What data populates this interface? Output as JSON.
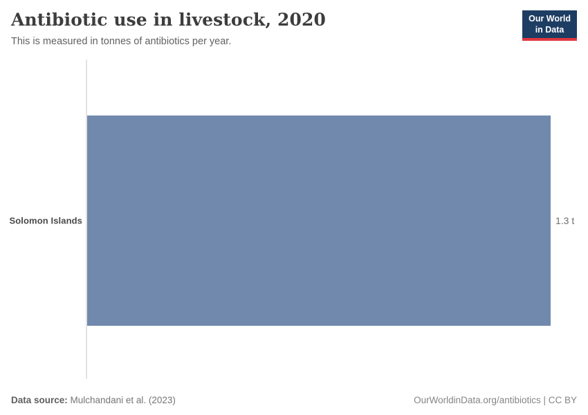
{
  "header": {
    "title": "Antibiotic use in livestock, 2020",
    "subtitle": "This is measured in tonnes of antibiotics per year.",
    "logo": {
      "line1": "Our World",
      "line2": "in Data",
      "bg_color": "#1d3d63",
      "accent_color": "#e0373f"
    }
  },
  "chart_data": {
    "type": "bar",
    "orientation": "horizontal",
    "categories": [
      "Solomon Islands"
    ],
    "values": [
      1.3
    ],
    "value_labels": [
      "1.3 t"
    ],
    "unit": "tonnes of antibiotics per year",
    "title": "Antibiotic use in livestock, 2020",
    "xlabel": "",
    "ylabel": "",
    "xlim": [
      0,
      1.3
    ],
    "grid": false,
    "legend": false,
    "bar_color": "#7189ac",
    "axis_line_color": "#e3e3e3"
  },
  "footer": {
    "datasource_label": "Data source:",
    "datasource_value": " Mulchandani et al. (2023)",
    "credit": "OurWorldinData.org/antibiotics | CC BY"
  }
}
